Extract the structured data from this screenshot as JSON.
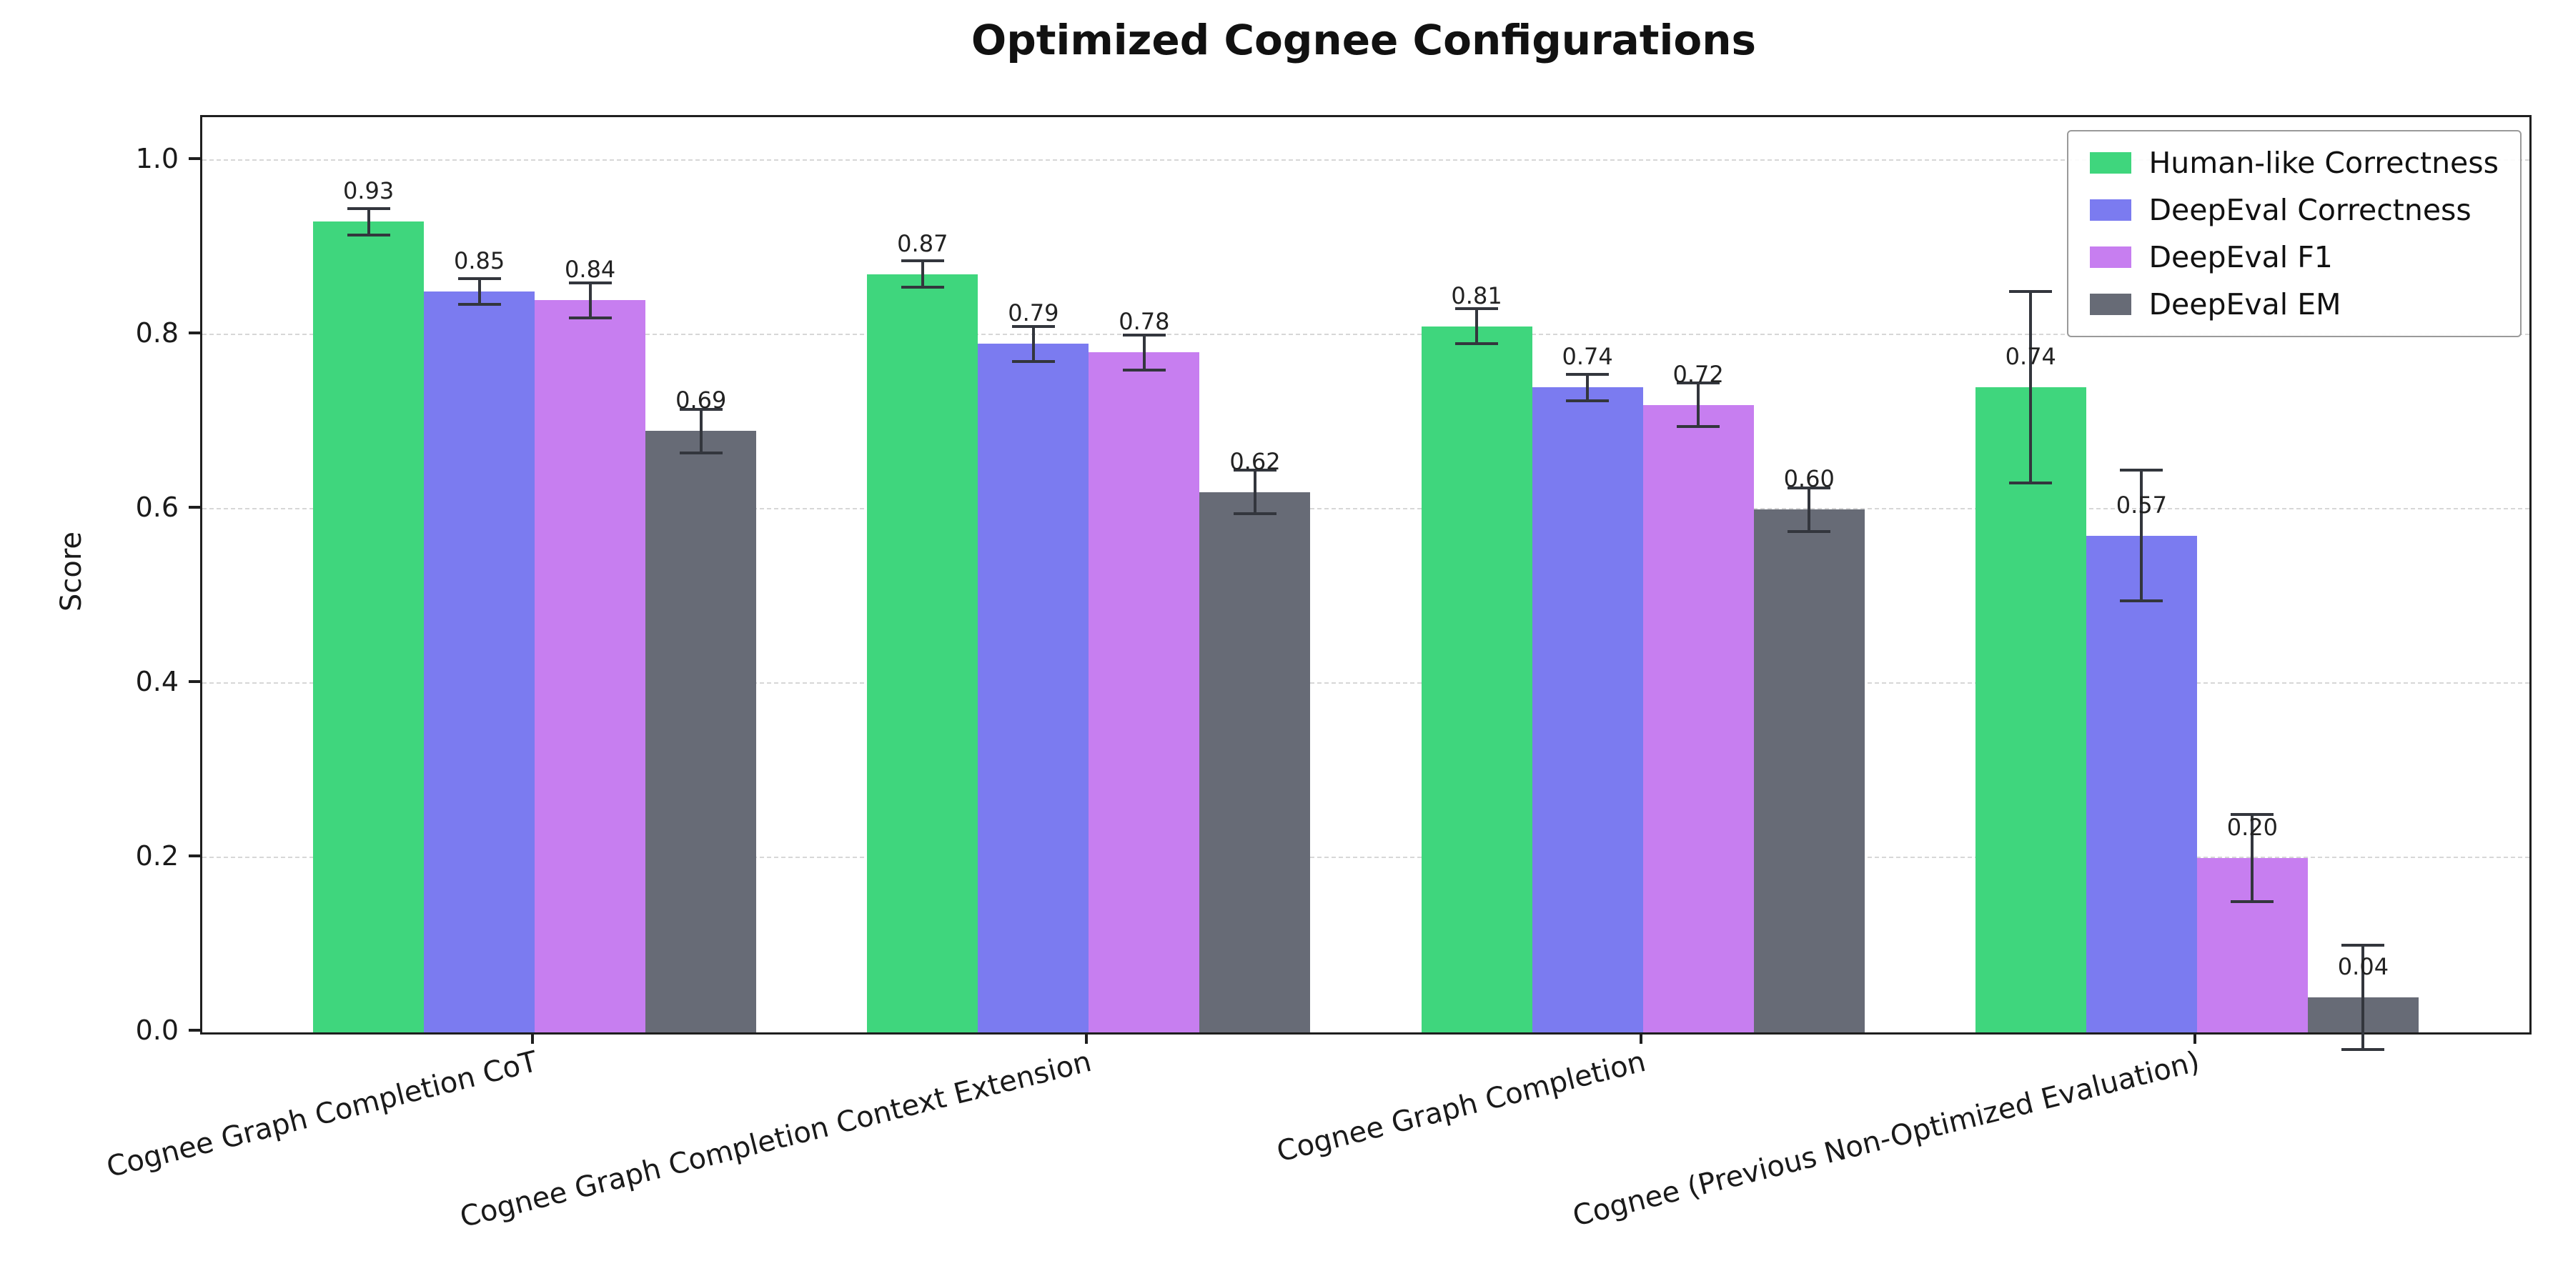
{
  "chart_data": {
    "type": "bar",
    "title": "Optimized Cognee Configurations",
    "xlabel": "",
    "ylabel": "Score",
    "ylim": [
      0,
      1.05
    ],
    "yticks": [
      0.0,
      0.2,
      0.4,
      0.6,
      0.8,
      1.0
    ],
    "grid": "horizontal-dashed",
    "legend_position": "upper right",
    "error_bars": true,
    "error_color": "#33363d",
    "categories": [
      "Cognee Graph Completion CoT",
      "Cognee Graph Completion Context Extension",
      "Cognee Graph Completion",
      "Cognee (Previous Non-Optimized Evaluation)"
    ],
    "series": [
      {
        "name": "Human-like Correctness",
        "color": "#3fd67d",
        "values": [
          0.93,
          0.87,
          0.81,
          0.74
        ],
        "errors": [
          0.015,
          0.015,
          0.02,
          0.11
        ]
      },
      {
        "name": "DeepEval Correctness",
        "color": "#7b7bf0",
        "values": [
          0.85,
          0.79,
          0.74,
          0.57
        ],
        "errors": [
          0.015,
          0.02,
          0.015,
          0.075
        ]
      },
      {
        "name": "DeepEval F1",
        "color": "#c77ef0",
        "values": [
          0.84,
          0.78,
          0.72,
          0.2
        ],
        "errors": [
          0.02,
          0.02,
          0.025,
          0.05
        ]
      },
      {
        "name": "DeepEval EM",
        "color": "#676b76",
        "values": [
          0.69,
          0.62,
          0.6,
          0.04
        ],
        "errors": [
          0.025,
          0.025,
          0.025,
          0.06
        ]
      }
    ]
  }
}
